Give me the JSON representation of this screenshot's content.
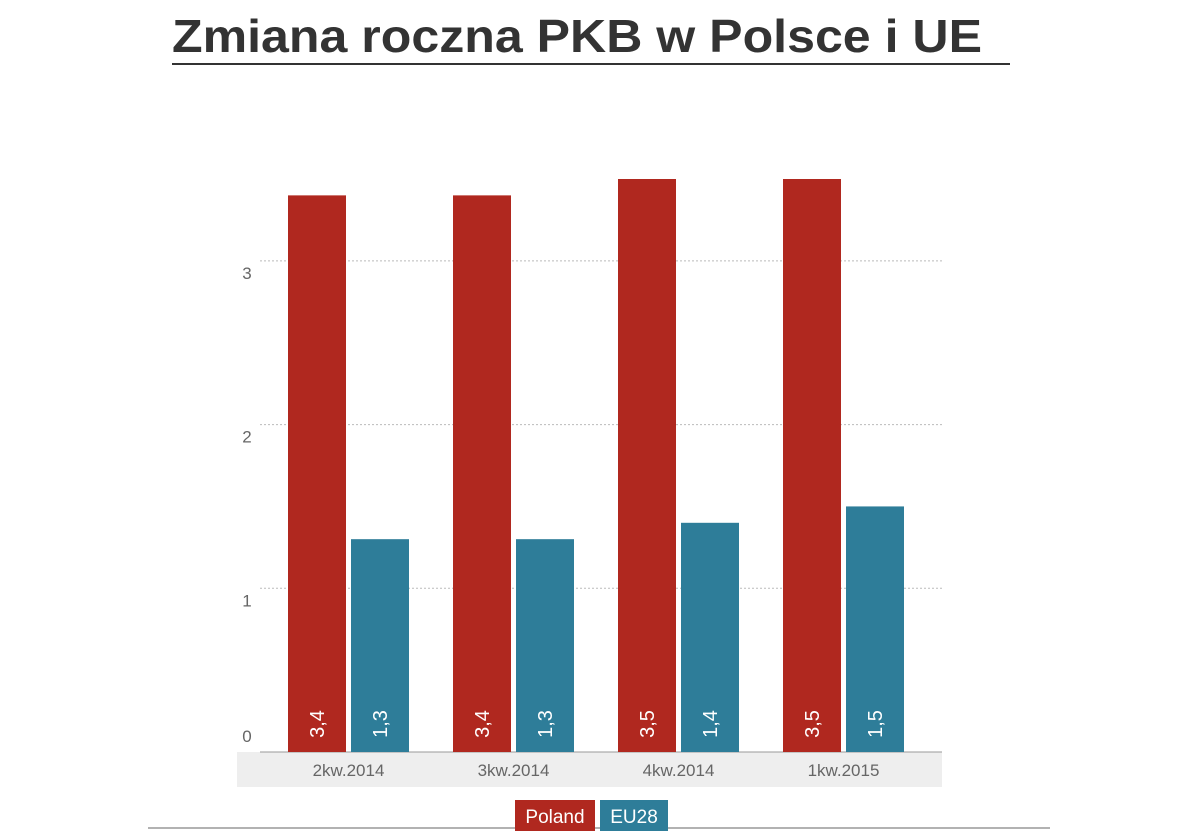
{
  "chart_data": {
    "type": "bar",
    "title": "Zmiana roczna PKB w Polsce i UE",
    "categories": [
      "2kw.2014",
      "3kw.2014",
      "4kw.2014",
      "1kw.2015"
    ],
    "series": [
      {
        "name": "Poland",
        "color": "#b0281f",
        "values": [
          3.4,
          3.4,
          3.5,
          3.5
        ],
        "value_labels": [
          "3,4",
          "3,4",
          "3,5",
          "3,5"
        ]
      },
      {
        "name": "EU28",
        "color": "#2e7d99",
        "values": [
          1.3,
          1.3,
          1.4,
          1.5
        ],
        "value_labels": [
          "1,3",
          "1,3",
          "1,4",
          "1,5"
        ]
      }
    ],
    "ylim": [
      0,
      3.5
    ],
    "yticks": [
      0,
      1,
      2,
      3
    ],
    "grid": true
  }
}
